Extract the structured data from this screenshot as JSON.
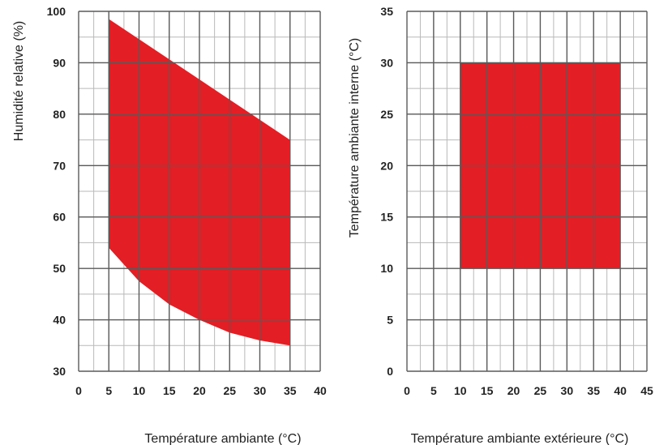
{
  "chart_data": [
    {
      "type": "area",
      "title": "",
      "xlabel": "Température ambiante (°C)",
      "ylabel": "Humidité relative (%)",
      "xlim": [
        0,
        40
      ],
      "ylim": [
        30,
        100
      ],
      "x_major_ticks": [
        0,
        5,
        10,
        15,
        20,
        25,
        30,
        35,
        40
      ],
      "y_major_ticks": [
        30,
        40,
        50,
        60,
        70,
        80,
        90,
        100
      ],
      "x_minor_step": 2.5,
      "y_minor_step": 5,
      "grid": true,
      "fill_color": "#e31e24",
      "upper_boundary": {
        "x": [
          5,
          35
        ],
        "y": [
          98.5,
          75
        ]
      },
      "lower_boundary": {
        "x": [
          5,
          10,
          15,
          20,
          25,
          30,
          35
        ],
        "y": [
          54,
          47.5,
          43,
          40,
          37.5,
          36,
          35
        ]
      }
    },
    {
      "type": "area",
      "title": "",
      "xlabel": "Température ambiante extérieure (°C)",
      "ylabel": "Température ambiante interne (°C)",
      "xlim": [
        0,
        45
      ],
      "ylim": [
        0,
        35
      ],
      "x_major_ticks": [
        0,
        5,
        10,
        15,
        20,
        25,
        30,
        35,
        40,
        45
      ],
      "y_major_ticks": [
        0,
        5,
        10,
        15,
        20,
        25,
        30,
        35
      ],
      "x_minor_step": 2.5,
      "y_minor_step": 2.5,
      "grid": true,
      "fill_color": "#e31e24",
      "region": {
        "x": [
          10,
          40
        ],
        "y": [
          10,
          30
        ]
      }
    }
  ]
}
